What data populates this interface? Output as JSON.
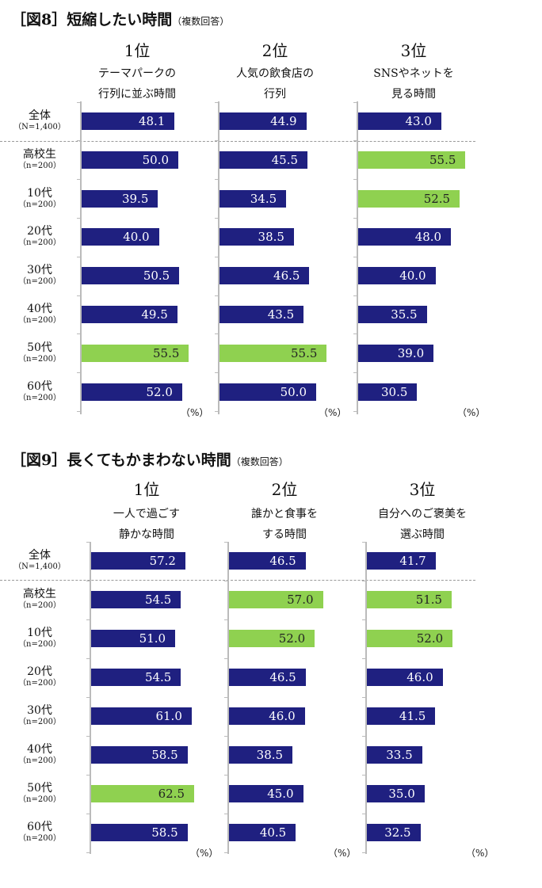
{
  "colors": {
    "normal": "#1f2080",
    "highlight": "#8fd150"
  },
  "chart_data": [
    {
      "type": "bar",
      "title": "［図8］短縮したい時間",
      "subtitle": "（複数回答）",
      "unit": "（%）",
      "categories": [
        {
          "name": "全体",
          "n": "（N=1,400）"
        },
        {
          "name": "高校生",
          "n": "（n=200）"
        },
        {
          "name": "10代",
          "n": "（n=200）"
        },
        {
          "name": "20代",
          "n": "（n=200）"
        },
        {
          "name": "30代",
          "n": "（n=200）"
        },
        {
          "name": "40代",
          "n": "（n=200）"
        },
        {
          "name": "50代",
          "n": "（n=200）"
        },
        {
          "name": "60代",
          "n": "（n=200）"
        }
      ],
      "series": [
        {
          "rank": "1位",
          "label": [
            "テーマパークの",
            "行列に並ぶ時間"
          ],
          "values": [
            48.1,
            50.0,
            39.5,
            40.0,
            50.5,
            49.5,
            55.5,
            52.0
          ],
          "highlight": [
            false,
            false,
            false,
            false,
            false,
            false,
            true,
            false
          ]
        },
        {
          "rank": "2位",
          "label": [
            "人気の飲食店の",
            "行列"
          ],
          "values": [
            44.9,
            45.5,
            34.5,
            38.5,
            46.5,
            43.5,
            55.5,
            50.0
          ],
          "highlight": [
            false,
            false,
            false,
            false,
            false,
            false,
            true,
            false
          ]
        },
        {
          "rank": "3位",
          "label": [
            "SNSやネットを",
            "見る時間"
          ],
          "values": [
            43.0,
            55.5,
            52.5,
            48.0,
            40.0,
            35.5,
            39.0,
            30.5
          ],
          "highlight": [
            false,
            true,
            true,
            false,
            false,
            false,
            false,
            false
          ]
        }
      ]
    },
    {
      "type": "bar",
      "title": "［図9］長くてもかまわない時間",
      "subtitle": "（複数回答）",
      "unit": "（%）",
      "categories": [
        {
          "name": "全体",
          "n": "（N=1,400）"
        },
        {
          "name": "高校生",
          "n": "（n=200）"
        },
        {
          "name": "10代",
          "n": "（n=200）"
        },
        {
          "name": "20代",
          "n": "（n=200）"
        },
        {
          "name": "30代",
          "n": "（n=200）"
        },
        {
          "name": "40代",
          "n": "（n=200）"
        },
        {
          "name": "50代",
          "n": "（n=200）"
        },
        {
          "name": "60代",
          "n": "（n=200）"
        }
      ],
      "series": [
        {
          "rank": "1位",
          "label": [
            "一人で過ごす",
            "静かな時間"
          ],
          "values": [
            57.2,
            54.5,
            51.0,
            54.5,
            61.0,
            58.5,
            62.5,
            58.5
          ],
          "highlight": [
            false,
            false,
            false,
            false,
            false,
            false,
            true,
            false
          ]
        },
        {
          "rank": "2位",
          "label": [
            "誰かと食事を",
            "する時間"
          ],
          "values": [
            46.5,
            57.0,
            52.0,
            46.5,
            46.0,
            38.5,
            45.0,
            40.5
          ],
          "highlight": [
            false,
            true,
            true,
            false,
            false,
            false,
            false,
            false
          ]
        },
        {
          "rank": "3位",
          "label": [
            "自分へのご褒美を",
            "選ぶ時間"
          ],
          "values": [
            41.7,
            51.5,
            52.0,
            46.0,
            41.5,
            33.5,
            35.0,
            32.5
          ],
          "highlight": [
            false,
            true,
            true,
            false,
            false,
            false,
            false,
            false
          ]
        }
      ]
    }
  ]
}
